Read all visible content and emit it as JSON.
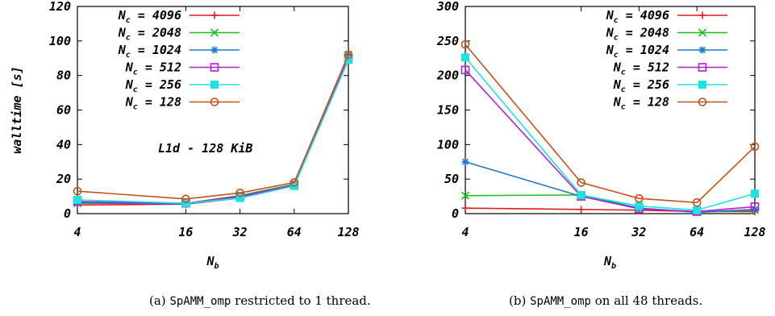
{
  "charts": [
    {
      "id": "a",
      "caption": {
        "label": "(a)",
        "code": "SpAMM_omp",
        "text": "restricted to 1 thread."
      },
      "chart_data": {
        "type": "line",
        "x_scale": "log2",
        "x_ticks": [
          4,
          16,
          32,
          64,
          128
        ],
        "y_ticks": [
          0,
          20,
          40,
          60,
          80,
          100,
          120
        ],
        "ylim": [
          0,
          120
        ],
        "xlabel": {
          "main": "N",
          "sub": "b"
        },
        "ylabel": "walltime [s]",
        "annotation": "L1d - 128 KiB",
        "legend_position": "top-left",
        "series": [
          {
            "name": "N_c = 4096",
            "label_main": "N",
            "label_sub": "c",
            "label_rest": " = 4096",
            "color": "#e41a1c",
            "marker": "plus",
            "x": [
              4,
              16,
              32,
              64,
              128
            ],
            "y": [
              5,
              5.5,
              9,
              16,
              90
            ]
          },
          {
            "name": "N_c = 2048",
            "label_main": "N",
            "label_sub": "c",
            "label_rest": " = 2048",
            "color": "#1dbf1d",
            "marker": "cross",
            "x": [
              4,
              16,
              32,
              64,
              128
            ],
            "y": [
              6,
              6,
              10.5,
              17,
              92
            ]
          },
          {
            "name": "N_c = 1024",
            "label_main": "N",
            "label_sub": "c",
            "label_rest": " = 1024",
            "color": "#1f78d4",
            "marker": "star",
            "x": [
              4,
              16,
              32,
              64,
              128
            ],
            "y": [
              6.5,
              5.5,
              9.5,
              16,
              90
            ]
          },
          {
            "name": "N_c = 512",
            "label_main": "N",
            "label_sub": "c",
            "label_rest": " = 512",
            "color": "#b21fd6",
            "marker": "square-open",
            "x": [
              4,
              16,
              32,
              64,
              128
            ],
            "y": [
              7,
              6,
              10,
              16.5,
              90
            ]
          },
          {
            "name": "N_c = 256",
            "label_main": "N",
            "label_sub": "c",
            "label_rest": " = 256",
            "color": "#1de3e3",
            "marker": "square-filled",
            "x": [
              4,
              16,
              32,
              64,
              128
            ],
            "y": [
              8,
              6,
              9,
              16,
              89
            ]
          },
          {
            "name": "N_c = 128",
            "label_main": "N",
            "label_sub": "c",
            "label_rest": " = 128",
            "color": "#c0541a",
            "marker": "circle-open",
            "x": [
              4,
              16,
              32,
              64,
              128
            ],
            "y": [
              13,
              8.5,
              12,
              18,
              92
            ]
          }
        ]
      }
    },
    {
      "id": "b",
      "caption": {
        "label": "(b)",
        "code": "SpAMM_omp",
        "text": "on all 48 threads."
      },
      "chart_data": {
        "type": "line",
        "x_scale": "log2",
        "x_ticks": [
          4,
          16,
          32,
          64,
          128
        ],
        "y_ticks": [
          0,
          50,
          100,
          150,
          200,
          250,
          300
        ],
        "ylim": [
          0,
          300
        ],
        "xlabel": {
          "main": "N",
          "sub": "b"
        },
        "ylabel": "",
        "annotation": "",
        "legend_position": "top-right",
        "series": [
          {
            "name": "N_c = 4096",
            "label_main": "N",
            "label_sub": "c",
            "label_rest": " = 4096",
            "color": "#e41a1c",
            "marker": "plus",
            "x": [
              4,
              16,
              32,
              64,
              128
            ],
            "y": [
              8,
              6,
              5,
              3,
              3
            ]
          },
          {
            "name": "N_c = 2048",
            "label_main": "N",
            "label_sub": "c",
            "label_rest": " = 2048",
            "color": "#1dbf1d",
            "marker": "cross",
            "x": [
              4,
              16,
              32,
              64,
              128
            ],
            "y": [
              26,
              27,
              8,
              2,
              5
            ]
          },
          {
            "name": "N_c = 1024",
            "label_main": "N",
            "label_sub": "c",
            "label_rest": " = 1024",
            "color": "#1f78d4",
            "marker": "star",
            "x": [
              4,
              16,
              32,
              64,
              128
            ],
            "y": [
              75,
              25,
              8,
              2,
              6
            ]
          },
          {
            "name": "N_c = 512",
            "label_main": "N",
            "label_sub": "c",
            "label_rest": " = 512",
            "color": "#b21fd6",
            "marker": "square-open",
            "x": [
              4,
              16,
              32,
              64,
              128
            ],
            "y": [
              208,
              25,
              7,
              3,
              10
            ]
          },
          {
            "name": "N_c = 256",
            "label_main": "N",
            "label_sub": "c",
            "label_rest": " = 256",
            "color": "#1de3e3",
            "marker": "square-filled",
            "x": [
              4,
              16,
              32,
              64,
              128
            ],
            "y": [
              226,
              27,
              11,
              5,
              29
            ]
          },
          {
            "name": "N_c = 128",
            "label_main": "N",
            "label_sub": "c",
            "label_rest": " = 128",
            "color": "#c0541a",
            "marker": "circle-open",
            "x": [
              4,
              16,
              32,
              64,
              128
            ],
            "y": [
              245,
              45,
              22,
              16,
              97
            ]
          }
        ]
      }
    }
  ]
}
